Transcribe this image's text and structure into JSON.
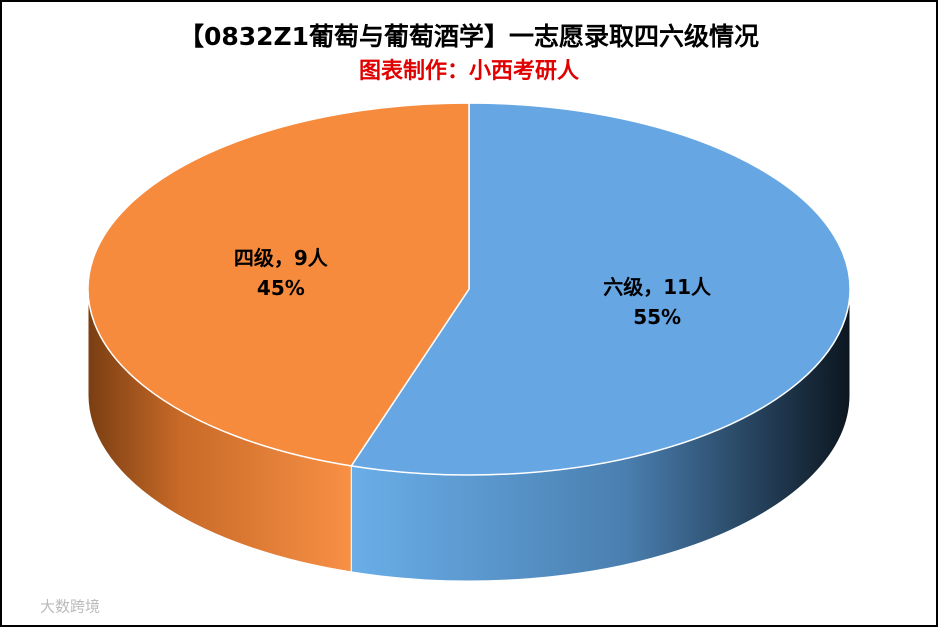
{
  "chart_data": {
    "type": "pie3d",
    "title": "【0832Z1葡萄与葡萄酒学】一志愿录取四六级情况",
    "subtitle": "图表制作：小西考研人",
    "categories": [
      "六级",
      "四级"
    ],
    "values": [
      11,
      9
    ],
    "value_labels": [
      "六级，11人",
      "四级，9人"
    ],
    "percents": [
      55,
      45
    ],
    "percent_labels": [
      "55%",
      "45%"
    ],
    "colors": [
      "#66a7e3",
      "#f68a3d"
    ],
    "watermark": "大数跨境"
  }
}
